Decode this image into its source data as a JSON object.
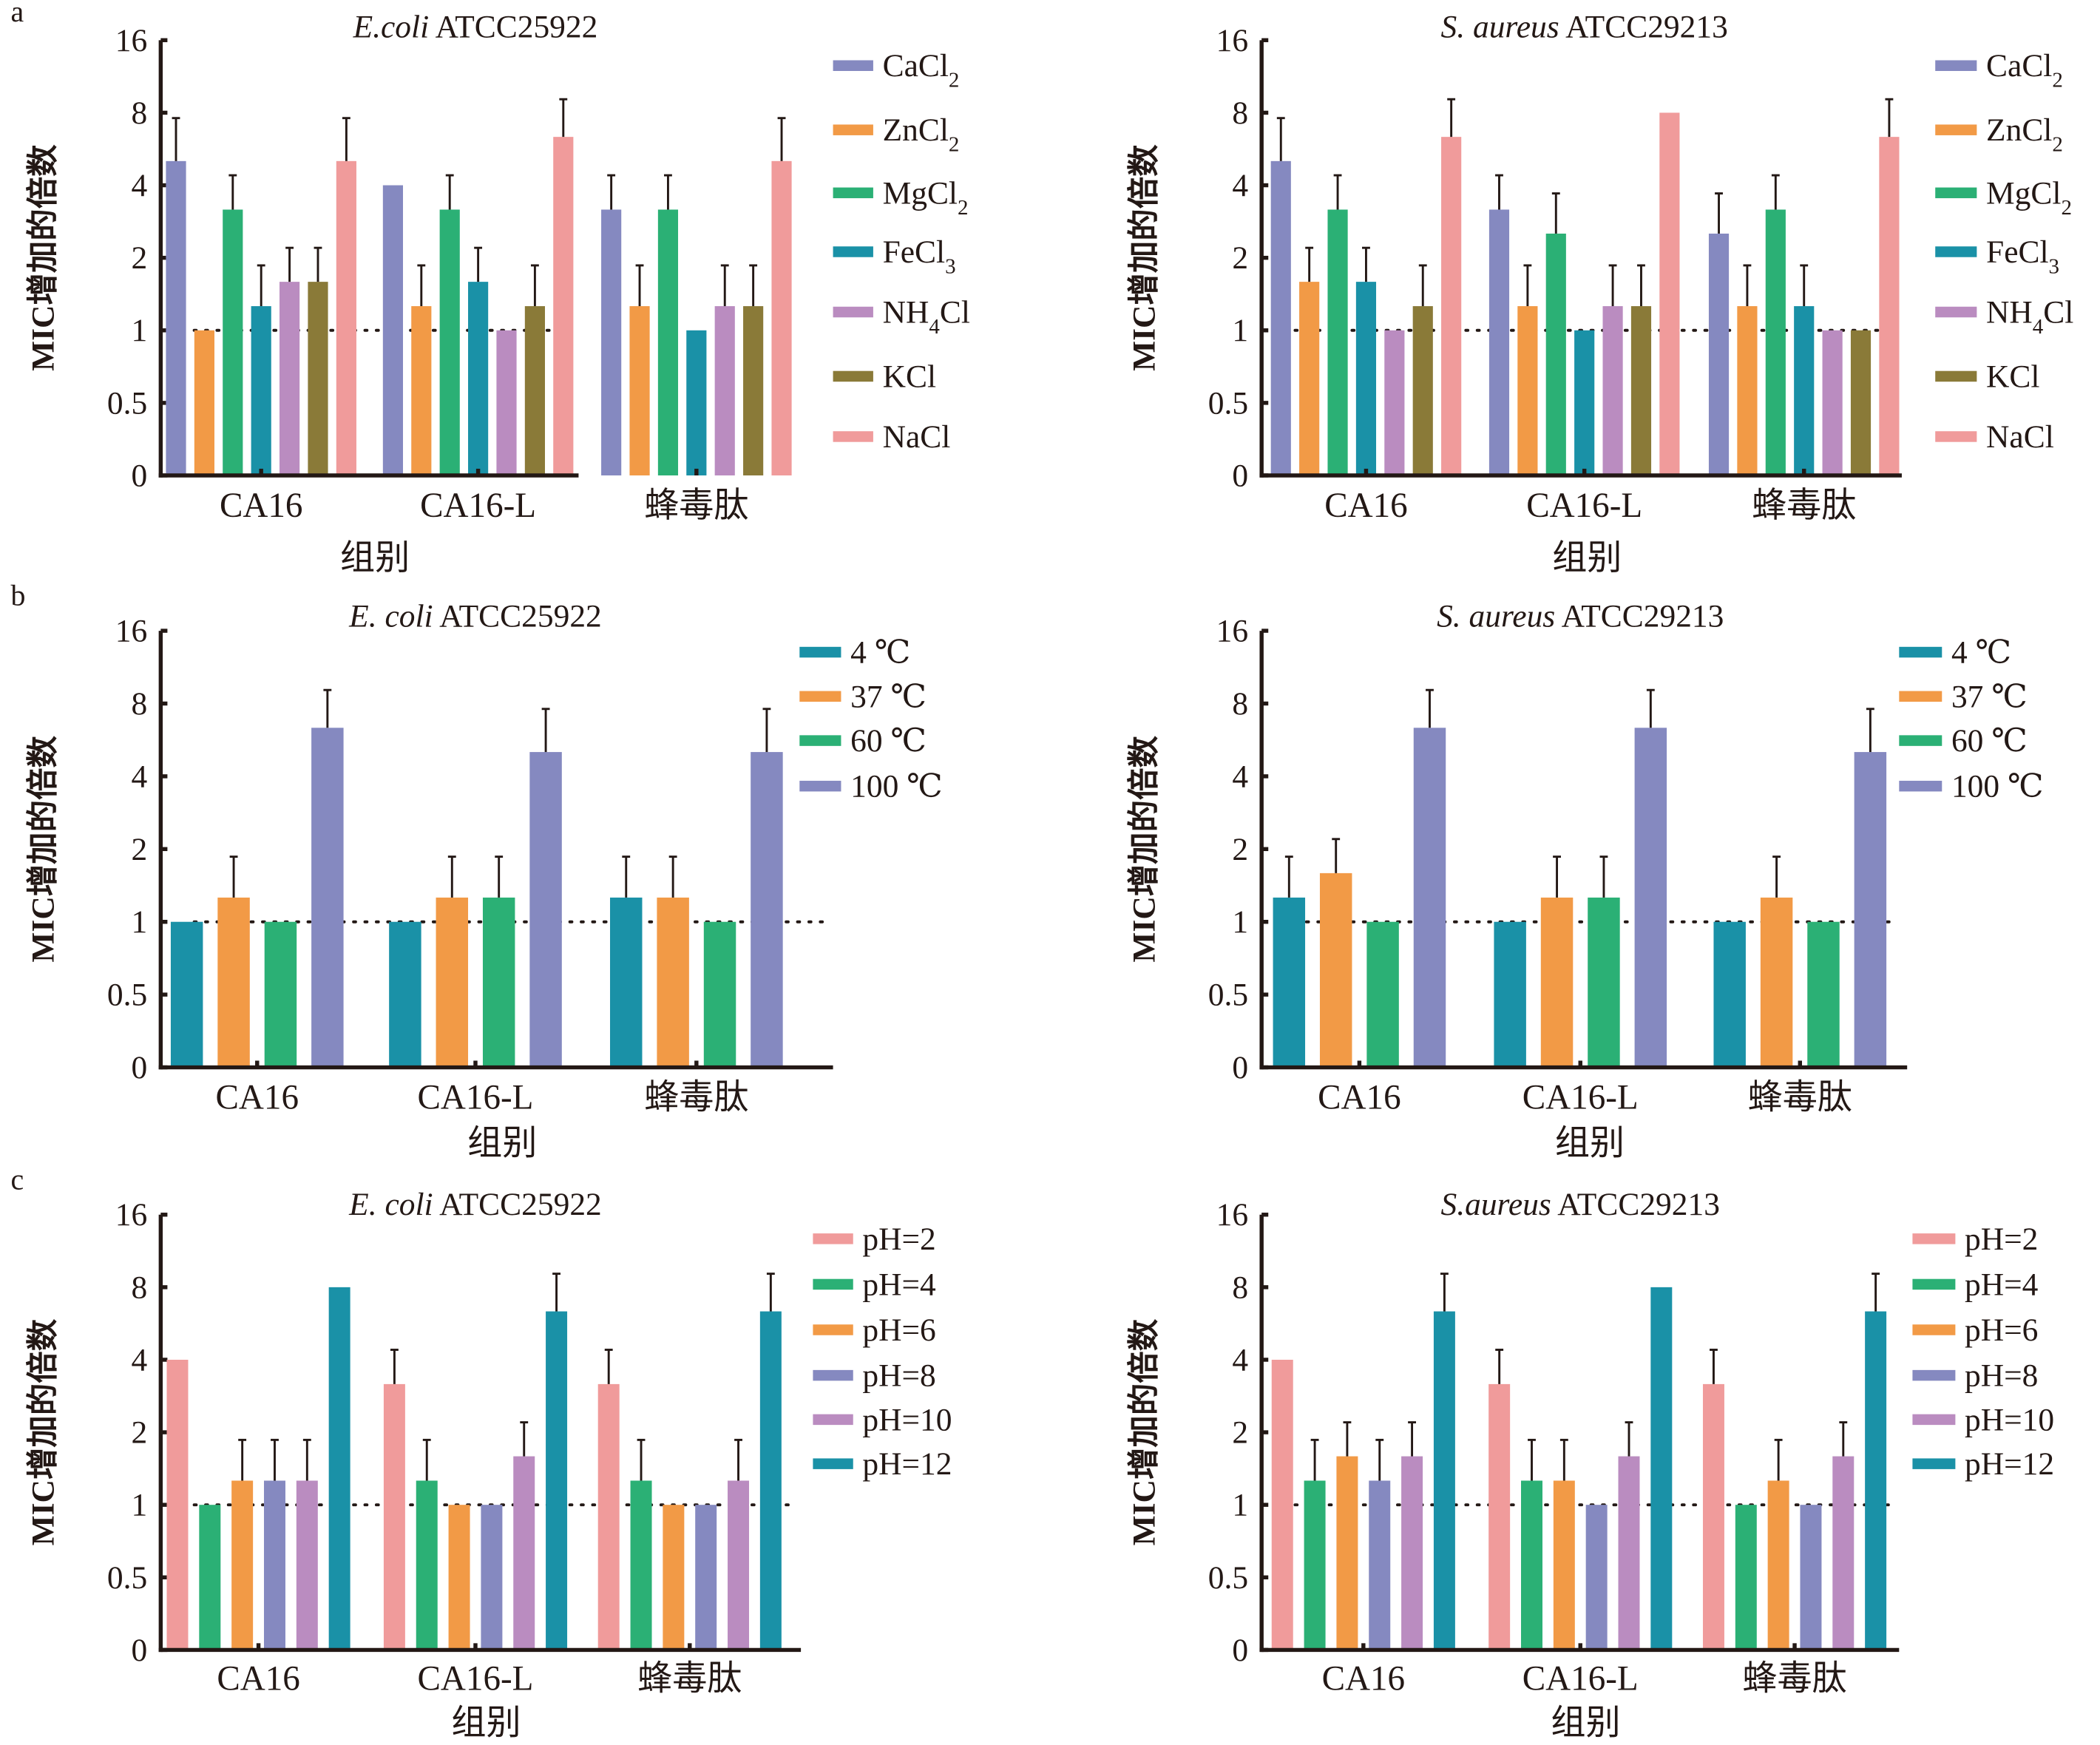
{
  "figure": {
    "panels": [
      "a",
      "b",
      "c"
    ],
    "reference_line": 1
  },
  "chart_data": [
    {
      "panel": "a",
      "type": "bar",
      "title_italic": "E.coli",
      "title_rest": " ATCC25922",
      "xlabel": "组别",
      "ylabel": "MIC增加的倍数",
      "yscale": "log2",
      "yticks": [
        "0",
        "0.5",
        "1",
        "2",
        "4",
        "8",
        "16"
      ],
      "ylim": [
        0,
        16
      ],
      "categories": [
        "CA16",
        "CA16-L",
        "蜂毒肽"
      ],
      "legend_position": "right",
      "series": [
        {
          "name": "CaCl",
          "sub": "2",
          "tail": "",
          "color": "#8589c0",
          "values": [
            5.04,
            4,
            3.17
          ],
          "error_top": [
            7.6,
            null,
            4.4
          ]
        },
        {
          "name": "ZnCl",
          "sub": "2",
          "tail": "",
          "color": "#f29a46",
          "values": [
            1,
            1.26,
            1.26
          ],
          "error_top": [
            null,
            1.86,
            1.86
          ]
        },
        {
          "name": "MgCl",
          "sub": "2",
          "tail": "",
          "color": "#2bb075",
          "values": [
            3.17,
            3.17,
            3.17
          ],
          "error_top": [
            4.4,
            4.4,
            4.4
          ]
        },
        {
          "name": "FeCl",
          "sub": "3",
          "tail": "",
          "color": "#1a91a7",
          "values": [
            1.26,
            1.59,
            1
          ],
          "error_top": [
            1.86,
            2.2,
            null
          ]
        },
        {
          "name": "NH",
          "sub": "4",
          "tail": "Cl",
          "color": "#ba8cc0",
          "values": [
            1.59,
            1,
            1.26
          ],
          "error_top": [
            2.2,
            null,
            1.86
          ]
        },
        {
          "name": "KCl",
          "sub": "",
          "tail": "",
          "color": "#8a7a38",
          "values": [
            1.59,
            1.26,
            1.26
          ],
          "error_top": [
            2.2,
            1.86,
            1.86
          ]
        },
        {
          "name": "NaCl",
          "sub": "",
          "tail": "",
          "color": "#f09b9b",
          "values": [
            5.04,
            6.35,
            5.04
          ],
          "error_top": [
            7.6,
            9.1,
            7.6
          ]
        }
      ]
    },
    {
      "panel": "a",
      "type": "bar",
      "title_italic": "S. aureus",
      "title_rest": " ATCC29213",
      "xlabel": "组别",
      "ylabel": "MIC增加的倍数",
      "yscale": "log2",
      "yticks": [
        "0",
        "0.5",
        "1",
        "2",
        "4",
        "8",
        "16"
      ],
      "ylim": [
        0,
        16
      ],
      "categories": [
        "CA16",
        "CA16-L",
        "蜂毒肽"
      ],
      "legend_position": "right",
      "series": [
        {
          "name": "CaCl",
          "sub": "2",
          "tail": "",
          "color": "#8589c0",
          "values": [
            5.04,
            3.17,
            2.52
          ],
          "error_top": [
            7.6,
            4.4,
            3.7
          ]
        },
        {
          "name": "ZnCl",
          "sub": "2",
          "tail": "",
          "color": "#f29a46",
          "values": [
            1.59,
            1.26,
            1.26
          ],
          "error_top": [
            2.2,
            1.86,
            1.86
          ]
        },
        {
          "name": "MgCl",
          "sub": "2",
          "tail": "",
          "color": "#2bb075",
          "values": [
            3.17,
            2.52,
            3.17
          ],
          "error_top": [
            4.4,
            3.7,
            4.4
          ]
        },
        {
          "name": "FeCl",
          "sub": "3",
          "tail": "",
          "color": "#1a91a7",
          "values": [
            1.59,
            1,
            1.26
          ],
          "error_top": [
            2.2,
            null,
            1.86
          ]
        },
        {
          "name": "NH",
          "sub": "4",
          "tail": "Cl",
          "color": "#ba8cc0",
          "values": [
            1,
            1.26,
            1
          ],
          "error_top": [
            null,
            1.86,
            null
          ]
        },
        {
          "name": "KCl",
          "sub": "",
          "tail": "",
          "color": "#8a7a38",
          "values": [
            1.26,
            1.26,
            1
          ],
          "error_top": [
            1.86,
            1.86,
            null
          ]
        },
        {
          "name": "NaCl",
          "sub": "",
          "tail": "",
          "color": "#f09b9b",
          "values": [
            6.35,
            8,
            6.35
          ],
          "error_top": [
            9.1,
            null,
            9.1
          ]
        }
      ]
    },
    {
      "panel": "b",
      "type": "bar",
      "title_italic": "E. coli",
      "title_rest": " ATCC25922",
      "xlabel": "组别",
      "ylabel": "MIC增加的倍数",
      "yscale": "log2",
      "yticks": [
        "0",
        "0.5",
        "1",
        "2",
        "4",
        "8",
        "16"
      ],
      "ylim": [
        0,
        16
      ],
      "categories": [
        "CA16",
        "CA16-L",
        "蜂毒肽"
      ],
      "legend_position": "top-right",
      "series": [
        {
          "name": "4 ℃",
          "sub": "",
          "tail": "",
          "color": "#1a91a7",
          "values": [
            1,
            1,
            1.26
          ],
          "error_top": [
            null,
            null,
            1.86
          ]
        },
        {
          "name": "37 ℃",
          "sub": "",
          "tail": "",
          "color": "#f29a46",
          "values": [
            1.26,
            1.26,
            1.26
          ],
          "error_top": [
            1.86,
            1.86,
            1.86
          ]
        },
        {
          "name": "60 ℃",
          "sub": "",
          "tail": "",
          "color": "#2bb075",
          "values": [
            1,
            1.26,
            1
          ],
          "error_top": [
            null,
            1.86,
            null
          ]
        },
        {
          "name": "100 ℃",
          "sub": "",
          "tail": "",
          "color": "#8589c0",
          "values": [
            6.35,
            5.04,
            5.04
          ],
          "error_top": [
            9.1,
            7.6,
            7.6
          ]
        }
      ]
    },
    {
      "panel": "b",
      "type": "bar",
      "title_italic": "S. aureus",
      "title_rest": " ATCC29213",
      "xlabel": "组别",
      "ylabel": "MIC增加的倍数",
      "yscale": "log2",
      "yticks": [
        "0",
        "0.5",
        "1",
        "2",
        "4",
        "8",
        "16"
      ],
      "ylim": [
        0,
        16
      ],
      "categories": [
        "CA16",
        "CA16-L",
        "蜂毒肽"
      ],
      "legend_position": "top-right",
      "series": [
        {
          "name": "4 ℃",
          "sub": "",
          "tail": "",
          "color": "#1a91a7",
          "values": [
            1.26,
            1,
            1
          ],
          "error_top": [
            1.86,
            null,
            null
          ]
        },
        {
          "name": "37 ℃",
          "sub": "",
          "tail": "",
          "color": "#f29a46",
          "values": [
            1.59,
            1.26,
            1.26
          ],
          "error_top": [
            2.2,
            1.86,
            1.86
          ]
        },
        {
          "name": "60 ℃",
          "sub": "",
          "tail": "",
          "color": "#2bb075",
          "values": [
            1,
            1.26,
            1
          ],
          "error_top": [
            null,
            1.86,
            null
          ]
        },
        {
          "name": "100 ℃",
          "sub": "",
          "tail": "",
          "color": "#8589c0",
          "values": [
            6.35,
            6.35,
            5.04
          ],
          "error_top": [
            9.1,
            9.1,
            7.6
          ]
        }
      ]
    },
    {
      "panel": "c",
      "type": "bar",
      "title_italic": "E. coli",
      "title_rest": " ATCC25922",
      "xlabel": "组别",
      "ylabel": "MIC增加的倍数",
      "yscale": "log2",
      "yticks": [
        "0",
        "0.5",
        "1",
        "2",
        "4",
        "8",
        "16"
      ],
      "ylim": [
        0,
        16
      ],
      "categories": [
        "CA16",
        "CA16-L",
        "蜂毒肽"
      ],
      "legend_position": "right",
      "series": [
        {
          "name": "pH=2",
          "sub": "",
          "tail": "",
          "color": "#f09b9b",
          "values": [
            4,
            3.17,
            3.17
          ],
          "error_top": [
            null,
            4.4,
            4.4
          ]
        },
        {
          "name": "pH=4",
          "sub": "",
          "tail": "",
          "color": "#2bb075",
          "values": [
            1,
            1.26,
            1.26
          ],
          "error_top": [
            null,
            1.86,
            1.86
          ]
        },
        {
          "name": "pH=6",
          "sub": "",
          "tail": "",
          "color": "#f29a46",
          "values": [
            1.26,
            1,
            1
          ],
          "error_top": [
            1.86,
            null,
            null
          ]
        },
        {
          "name": "pH=8",
          "sub": "",
          "tail": "",
          "color": "#8589c0",
          "values": [
            1.26,
            1,
            1
          ],
          "error_top": [
            1.86,
            null,
            null
          ]
        },
        {
          "name": "pH=10",
          "sub": "",
          "tail": "",
          "color": "#ba8cc0",
          "values": [
            1.26,
            1.59,
            1.26
          ],
          "error_top": [
            1.86,
            2.2,
            1.86
          ]
        },
        {
          "name": "pH=12",
          "sub": "",
          "tail": "",
          "color": "#1a91a7",
          "values": [
            8,
            6.35,
            6.35
          ],
          "error_top": [
            null,
            9.1,
            9.1
          ]
        }
      ]
    },
    {
      "panel": "c",
      "type": "bar",
      "title_italic": "S.aureus",
      "title_rest": " ATCC29213",
      "xlabel": "组别",
      "ylabel": "MIC增加的倍数",
      "yscale": "log2",
      "yticks": [
        "0",
        "0.5",
        "1",
        "2",
        "4",
        "8",
        "16"
      ],
      "ylim": [
        0,
        16
      ],
      "categories": [
        "CA16",
        "CA16-L",
        "蜂毒肽"
      ],
      "legend_position": "right",
      "series": [
        {
          "name": "pH=2",
          "sub": "",
          "tail": "",
          "color": "#f09b9b",
          "values": [
            4,
            3.17,
            3.17
          ],
          "error_top": [
            null,
            4.4,
            4.4
          ]
        },
        {
          "name": "pH=4",
          "sub": "",
          "tail": "",
          "color": "#2bb075",
          "values": [
            1.26,
            1.26,
            1
          ],
          "error_top": [
            1.86,
            1.86,
            null
          ]
        },
        {
          "name": "pH=6",
          "sub": "",
          "tail": "",
          "color": "#f29a46",
          "values": [
            1.59,
            1.26,
            1.26
          ],
          "error_top": [
            2.2,
            1.86,
            1.86
          ]
        },
        {
          "name": "pH=8",
          "sub": "",
          "tail": "",
          "color": "#8589c0",
          "values": [
            1.26,
            1,
            1
          ],
          "error_top": [
            1.86,
            null,
            null
          ]
        },
        {
          "name": "pH=10",
          "sub": "",
          "tail": "",
          "color": "#ba8cc0",
          "values": [
            1.59,
            1.59,
            1.59
          ],
          "error_top": [
            2.2,
            2.2,
            2.2
          ]
        },
        {
          "name": "pH=12",
          "sub": "",
          "tail": "",
          "color": "#1a91a7",
          "values": [
            6.35,
            8,
            6.35
          ],
          "error_top": [
            9.1,
            null,
            9.1
          ]
        }
      ]
    }
  ]
}
